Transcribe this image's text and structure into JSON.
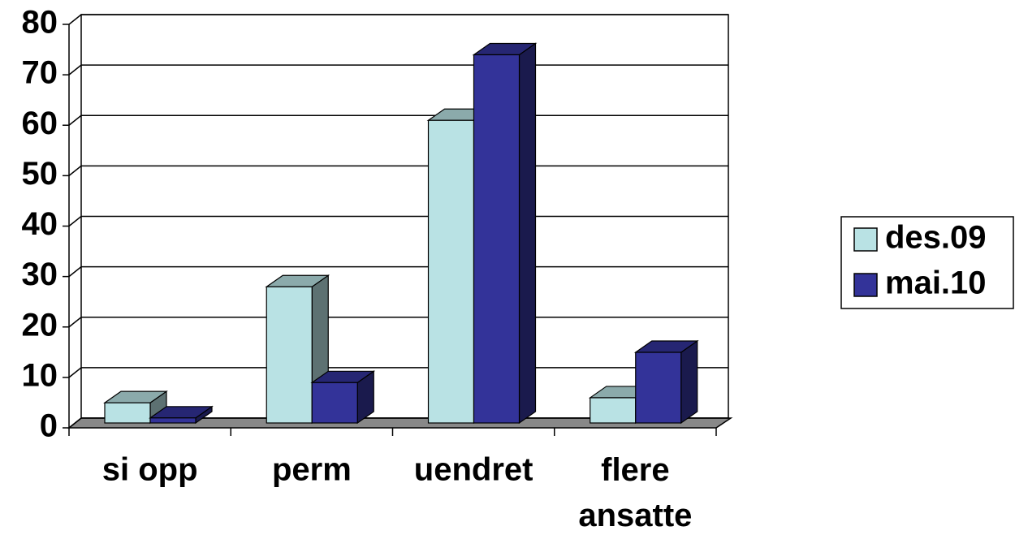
{
  "chart_data": {
    "type": "bar3d",
    "categories": [
      "si opp",
      "perm",
      "uendret",
      "flere ansatte"
    ],
    "series": [
      {
        "name": "des.09",
        "color": "#b9e2e4",
        "values": [
          4,
          27,
          60,
          5
        ]
      },
      {
        "name": "mai.10",
        "color": "#333399",
        "values": [
          1,
          8,
          73,
          14
        ]
      }
    ],
    "ylim": [
      0,
      80
    ],
    "yticks": [
      0,
      10,
      20,
      30,
      40,
      50,
      60,
      70,
      80
    ],
    "grid": true,
    "legend": "right"
  }
}
